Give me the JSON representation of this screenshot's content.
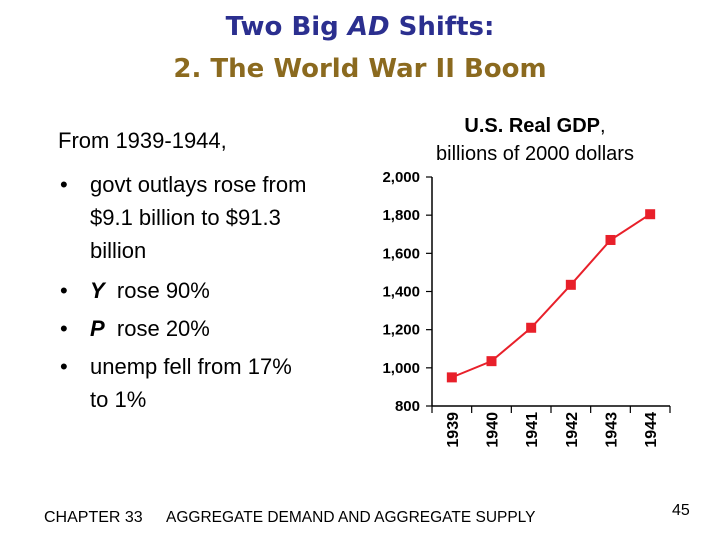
{
  "slide": {
    "title_prefix": "Two Big ",
    "title_em": "AD",
    "title_suffix": " Shifts:",
    "subtitle": "2.  The World War II Boom",
    "intro": "From 1939-1944,",
    "bullets": [
      {
        "text": "govt outlays rose from $9.1 billion to $91.3 billion"
      },
      {
        "var": "Y",
        "text": "  rose 90%"
      },
      {
        "var": "P",
        "text": "  rose 20%"
      },
      {
        "text": "unemp fell from 17% to 1%"
      }
    ],
    "chart_title_bold": "U.S. Real GDP",
    "chart_title_rest": ",",
    "chart_title_line2": "billions of 2000 dollars",
    "footer_chapter": "CHAPTER 33",
    "footer_name": "AGGREGATE DEMAND AND AGGREGATE SUPPLY",
    "page_number": "45"
  },
  "colors": {
    "title": "#2b2f8f",
    "subtitle": "#8b6a1f",
    "series": "#e8202a"
  },
  "chart_data": {
    "type": "line",
    "title": "U.S. Real GDP, billions of 2000 dollars",
    "x": [
      "1939",
      "1940",
      "1941",
      "1942",
      "1943",
      "1944"
    ],
    "series": [
      {
        "values": [
          950,
          1035,
          1210,
          1435,
          1670,
          1805
        ]
      }
    ],
    "ylim": [
      800,
      2000
    ],
    "yticks": [
      "2,000",
      "1,800",
      "1,600",
      "1,400",
      "1,200",
      "1,000",
      "800"
    ],
    "ytick_values": [
      2000,
      1800,
      1600,
      1400,
      1200,
      1000,
      800
    ],
    "grid": false
  }
}
